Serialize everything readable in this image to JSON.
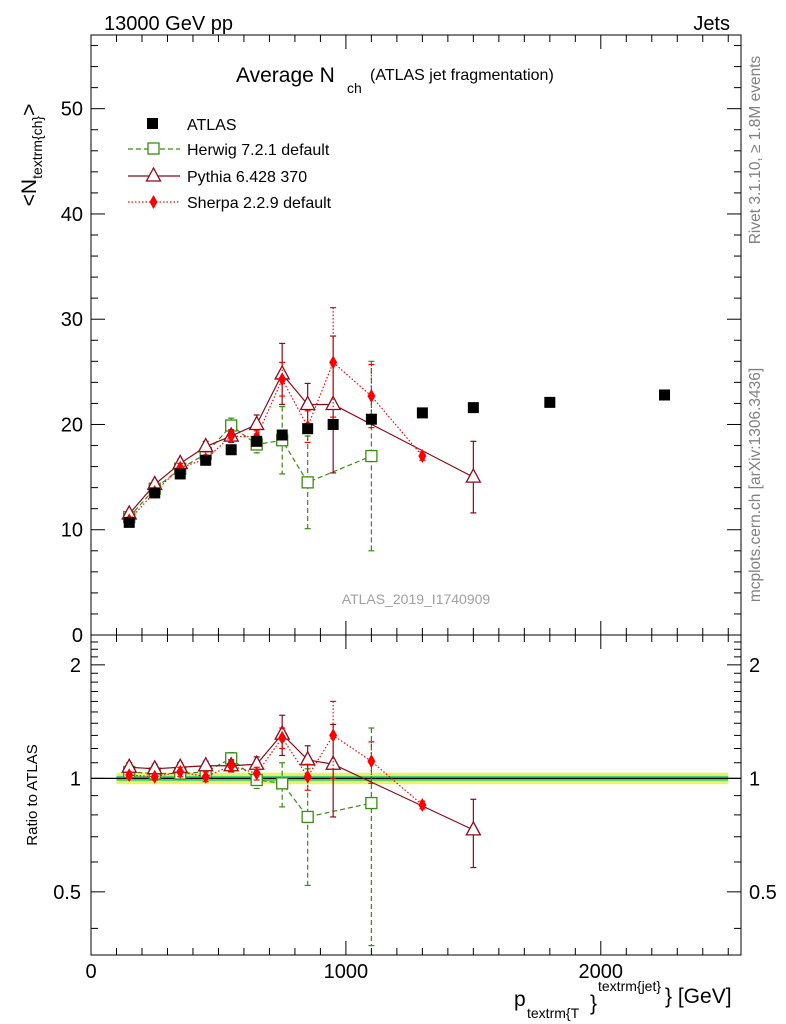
{
  "header": {
    "left": "13000 GeV pp",
    "right": "Jets"
  },
  "side_labels": {
    "rivet": "Rivet 3.1.10, ≥ 1.8M events",
    "mcplots": "mcplots.cern.ch [arXiv:1306.3436]"
  },
  "chart_data": [
    {
      "type": "scatter",
      "panel": "main",
      "title_main": "Average N",
      "title_sub": "ch",
      "title_extra": "(ATLAS jet fragmentation)",
      "ylabel_main": "<N",
      "ylabel_sub": "textrm{ch}",
      "ylabel_end": ">",
      "watermark": "ATLAS_2019_I1740909",
      "xlim": [
        0,
        2550
      ],
      "ylim": [
        0,
        57
      ],
      "yticks": [
        0,
        10,
        20,
        30,
        40,
        50
      ],
      "ytick_labels": [
        "0",
        "10",
        "20",
        "30",
        "40",
        "50"
      ],
      "legend_position": "top-left",
      "series": [
        {
          "name": "ATLAS",
          "color": "#000000",
          "marker": "square-filled",
          "line": "none",
          "x": [
            150,
            250,
            350,
            450,
            550,
            650,
            750,
            850,
            950,
            1100,
            1300,
            1500,
            1800,
            2250
          ],
          "y": [
            10.7,
            13.5,
            15.3,
            16.6,
            17.6,
            18.4,
            19.0,
            19.6,
            20.0,
            20.5,
            21.1,
            21.6,
            22.1,
            22.8
          ],
          "err": [
            0.1,
            0.1,
            0.1,
            0.1,
            0.1,
            0.1,
            0.1,
            0.1,
            0.1,
            0.1,
            0.1,
            0.1,
            0.1,
            0.1
          ]
        },
        {
          "name": "Herwig 7.2.1 default",
          "color": "#3a8c12",
          "marker": "square-open",
          "line": "dashed",
          "x": [
            150,
            250,
            350,
            450,
            550,
            650,
            750,
            850,
            1100
          ],
          "y": [
            11.2,
            13.9,
            15.8,
            17.2,
            19.9,
            18.1,
            18.5,
            14.5,
            17.0
          ],
          "err": [
            0.3,
            0.3,
            0.4,
            0.5,
            0.7,
            0.8,
            3.2,
            4.4,
            9.0
          ]
        },
        {
          "name": "Pythia 6.428 370",
          "color": "#8b0a1a",
          "marker": "triangle-open",
          "line": "solid",
          "x": [
            150,
            250,
            350,
            450,
            550,
            650,
            750,
            850,
            950,
            1500
          ],
          "y": [
            11.5,
            14.3,
            16.3,
            17.9,
            18.9,
            20.0,
            24.8,
            21.9,
            21.9,
            15.0
          ],
          "err": [
            0.3,
            0.4,
            0.4,
            0.5,
            0.6,
            0.9,
            2.9,
            2.0,
            6.5,
            3.4
          ]
        },
        {
          "name": "Sherpa 2.2.9 default",
          "color": "#ff0000",
          "marker": "diamond-filled",
          "line": "dotted",
          "x": [
            150,
            250,
            350,
            450,
            550,
            650,
            750,
            850,
            950,
            1100,
            1300
          ],
          "y": [
            10.9,
            13.6,
            15.9,
            16.7,
            18.9,
            18.8,
            24.3,
            19.8,
            25.9,
            22.7,
            17.0
          ],
          "err": [
            0.2,
            0.3,
            0.4,
            0.4,
            0.5,
            0.6,
            1.6,
            1.5,
            5.2,
            3.0,
            0.4
          ]
        }
      ]
    },
    {
      "type": "scatter",
      "panel": "ratio",
      "ylabel": "Ratio to ATLAS",
      "xlabel_main": "p",
      "xlabel_sub": "textrm{T",
      "xlabel_brace": "}",
      "xlabel_sup": "textrm{jet}",
      "xlabel_end": "} [GeV]",
      "xlim": [
        0,
        2550
      ],
      "ylim": [
        0.34,
        2.4
      ],
      "yscale": "log",
      "xticks": [
        0,
        1000,
        2000
      ],
      "xtick_labels": [
        "0",
        "1000",
        "2000"
      ],
      "yticks": [
        0.5,
        1,
        2
      ],
      "ytick_labels": [
        "0.5",
        "1",
        "2"
      ],
      "series": [
        {
          "name": "Herwig 7.2.1 default",
          "x": [
            150,
            250,
            350,
            450,
            550,
            650,
            750,
            850,
            1100
          ],
          "y": [
            1.04,
            1.03,
            1.03,
            1.04,
            1.13,
            0.99,
            0.97,
            0.79,
            0.86
          ],
          "err": [
            0.03,
            0.03,
            0.03,
            0.04,
            0.04,
            0.05,
            0.13,
            0.27,
            0.5
          ]
        },
        {
          "name": "Pythia 6.428 370",
          "x": [
            150,
            250,
            350,
            450,
            550,
            650,
            750,
            850,
            950,
            1500
          ],
          "y": [
            1.07,
            1.06,
            1.07,
            1.08,
            1.08,
            1.09,
            1.31,
            1.12,
            1.09,
            0.73
          ],
          "err": [
            0.03,
            0.03,
            0.03,
            0.03,
            0.04,
            0.05,
            0.16,
            0.1,
            0.3,
            0.15
          ]
        },
        {
          "name": "Sherpa 2.2.9 default",
          "x": [
            150,
            250,
            350,
            450,
            550,
            650,
            750,
            850,
            950,
            1100,
            1300
          ],
          "y": [
            1.02,
            1.01,
            1.04,
            1.01,
            1.08,
            1.03,
            1.28,
            1.01,
            1.3,
            1.11,
            0.85
          ],
          "err": [
            0.02,
            0.02,
            0.03,
            0.03,
            0.03,
            0.04,
            0.08,
            0.08,
            0.3,
            0.14,
            0.02
          ]
        }
      ],
      "bands": [
        {
          "name": "ATLAS uncertainty (inner)",
          "color": "#3cd276",
          "x0": 100,
          "x1": 2500,
          "lo": 0.985,
          "hi": 1.015
        },
        {
          "name": "ATLAS uncertainty (outer)",
          "color": "#f0f064",
          "x0": 100,
          "x1": 2500,
          "lo": 0.965,
          "hi": 1.035
        }
      ]
    }
  ]
}
